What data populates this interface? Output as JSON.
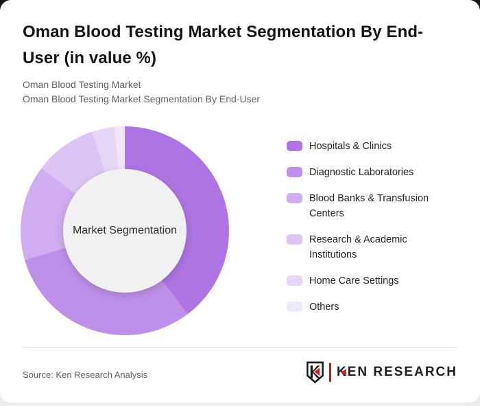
{
  "page": {
    "background_top_color": "#161616",
    "background_bottom_color": "#ececec",
    "card_color": "#ffffff"
  },
  "header": {
    "title": "Oman Blood Testing Market Segmentation By End-User (in value %)",
    "subtitle_line1": "Oman Blood Testing Market",
    "subtitle_line2": "Oman Blood Testing Market Segmentation By End-User"
  },
  "chart_data": {
    "type": "pie",
    "variant": "donut",
    "title": "Oman Blood Testing Market Segmentation By End-User (in value %)",
    "center_label": "Market Segmentation",
    "start_angle_deg": 0,
    "direction": "clockwise",
    "values_labeled_on_chart": false,
    "legend_position": "right",
    "hole_color": "#f1f1f2",
    "segments": [
      {
        "label": "Hospitals & Clinics",
        "value_pct": 39.7,
        "color": "#ae74e4"
      },
      {
        "label": "Diagnostic Laboratories",
        "value_pct": 30.8,
        "color": "#bf90ea"
      },
      {
        "label": "Blood Banks & Transfusion Centers",
        "value_pct": 14.7,
        "color": "#cfadf0"
      },
      {
        "label": "Research & Academic Institutions",
        "value_pct": 9.7,
        "color": "#dcc4f4"
      },
      {
        "label": "Home Care Settings",
        "value_pct": 3.5,
        "color": "#e6d6f7"
      },
      {
        "label": "Others",
        "value_pct": 1.6,
        "color": "#f0e7fb"
      }
    ]
  },
  "footer": {
    "source_text": "Source: Ken Research Analysis",
    "logo_text": "KEN RESEARCH",
    "logo_mark_letter": "K",
    "brand_red": "#c0272d",
    "brand_dark": "#1d1d1d",
    "logo_divider_color": "#9c2b2f"
  }
}
